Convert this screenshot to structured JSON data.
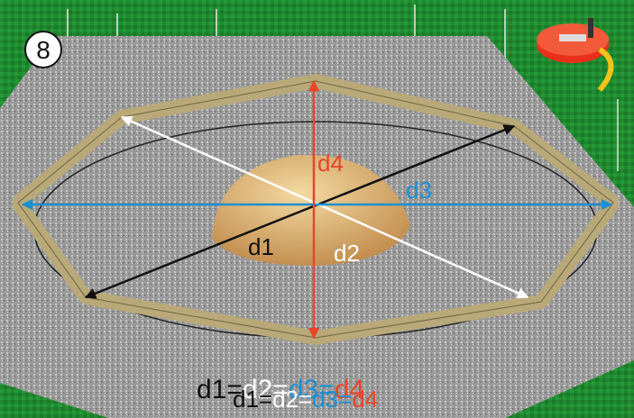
{
  "step": "8",
  "labels": [
    {
      "text": "d1",
      "color": "#111111"
    },
    {
      "text": "d2",
      "color": "#ffffff"
    },
    {
      "text": "d3",
      "color": "#1e8fd0"
    },
    {
      "text": "d4",
      "color": "#e8452a"
    }
  ],
  "formula": [
    {
      "text": "d1",
      "color": "#111111"
    },
    {
      "text": "=",
      "color": "#111111"
    },
    {
      "text": "d2",
      "color": "#ffffff"
    },
    {
      "text": "=",
      "color": "#ffffff"
    },
    {
      "text": "d3",
      "color": "#1e8fd0"
    },
    {
      "text": "=",
      "color": "#1e8fd0"
    },
    {
      "text": "d4",
      "color": "#e8452a"
    }
  ]
}
